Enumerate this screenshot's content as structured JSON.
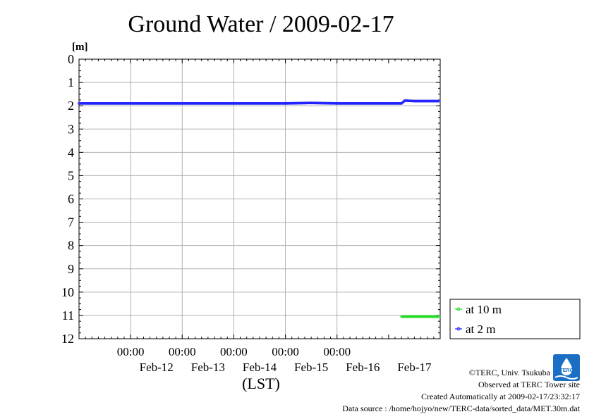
{
  "chart_data": {
    "type": "line",
    "title": "Ground Water / 2009-02-17",
    "ylabel": "[m]",
    "xlabel": "(LST)",
    "y_inverted": true,
    "ylim": [
      0,
      12
    ],
    "yticks": [
      "0",
      "1",
      "2",
      "3",
      "4",
      "5",
      "6",
      "7",
      "8",
      "9",
      "10",
      "11",
      "12"
    ],
    "x_range": [
      "2009-02-11T00:00",
      "2009-02-18T00:00"
    ],
    "x_time_labels": [
      "00:00",
      "00:00",
      "00:00",
      "00:00",
      "00:00"
    ],
    "x_day_labels": [
      "Feb-12",
      "Feb-13",
      "Feb-14",
      "Feb-15",
      "Feb-16",
      "Feb-17"
    ],
    "grid": true,
    "legend_position": "bottom-right outside",
    "series": [
      {
        "name": "at 10 m",
        "color": "#22dd22",
        "points": [
          [
            "2009-02-17T06:00",
            11.05
          ],
          [
            "2009-02-17T12:00",
            11.05
          ],
          [
            "2009-02-17T18:00",
            11.05
          ],
          [
            "2009-02-17T23:30",
            11.05
          ]
        ]
      },
      {
        "name": "at 2 m",
        "color": "#2222ff",
        "points": [
          [
            "2009-02-11T00:00",
            1.9
          ],
          [
            "2009-02-12T00:00",
            1.9
          ],
          [
            "2009-02-13T00:00",
            1.9
          ],
          [
            "2009-02-14T00:00",
            1.9
          ],
          [
            "2009-02-15T00:00",
            1.9
          ],
          [
            "2009-02-15T12:00",
            1.88
          ],
          [
            "2009-02-16T00:00",
            1.9
          ],
          [
            "2009-02-17T06:00",
            1.9
          ],
          [
            "2009-02-17T07:30",
            1.78
          ],
          [
            "2009-02-17T12:00",
            1.8
          ],
          [
            "2009-02-17T18:00",
            1.8
          ],
          [
            "2009-02-17T23:30",
            1.8
          ]
        ]
      }
    ]
  },
  "credits": {
    "copyright": "©TERC, Univ. Tsukuba",
    "observed": "Observed at TERC Tower site",
    "created": "Created Automatically at 2009-02-17/23:32:17",
    "source": "Data source : /home/hojyo/new/TERC-data/sorted_data/MET.30m.dat"
  },
  "logo": {
    "text": "TERC"
  }
}
